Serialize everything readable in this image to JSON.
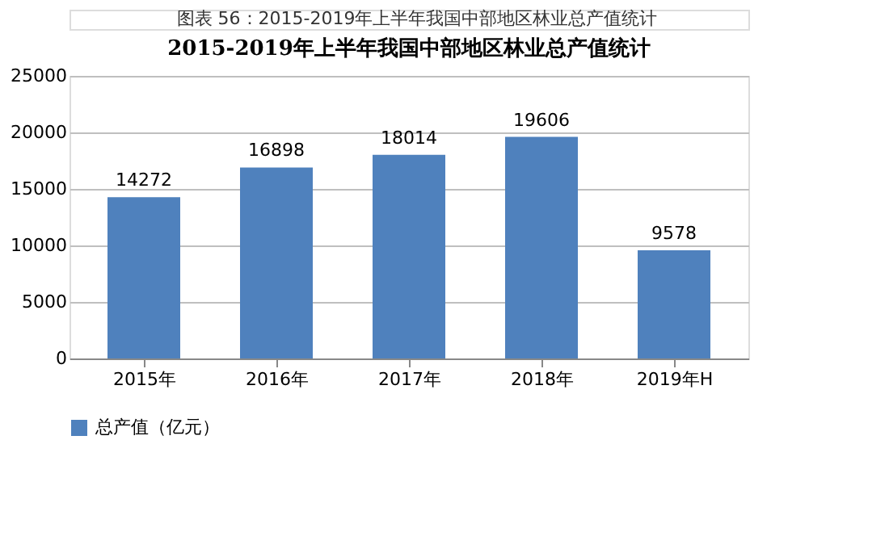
{
  "chart_data": {
    "type": "bar",
    "title": "2015-2019年上半年我国中部地区林业总产值统计",
    "categories": [
      "2015年",
      "2016年",
      "2017年",
      "2018年",
      "2019年H"
    ],
    "series": [
      {
        "name": "总产值（亿元）",
        "color": "#4f81bd",
        "values": [
          14272,
          16898,
          18014,
          19606,
          9578
        ]
      }
    ],
    "ylim": [
      0,
      25000
    ],
    "yticks": [
      0,
      5000,
      10000,
      15000,
      20000,
      25000
    ],
    "grid": "y",
    "legend": "bottom",
    "data_labels": true,
    "annotations": [
      "图表 56：2015-2019年上半年我国中部地区林业总产值统计"
    ]
  }
}
